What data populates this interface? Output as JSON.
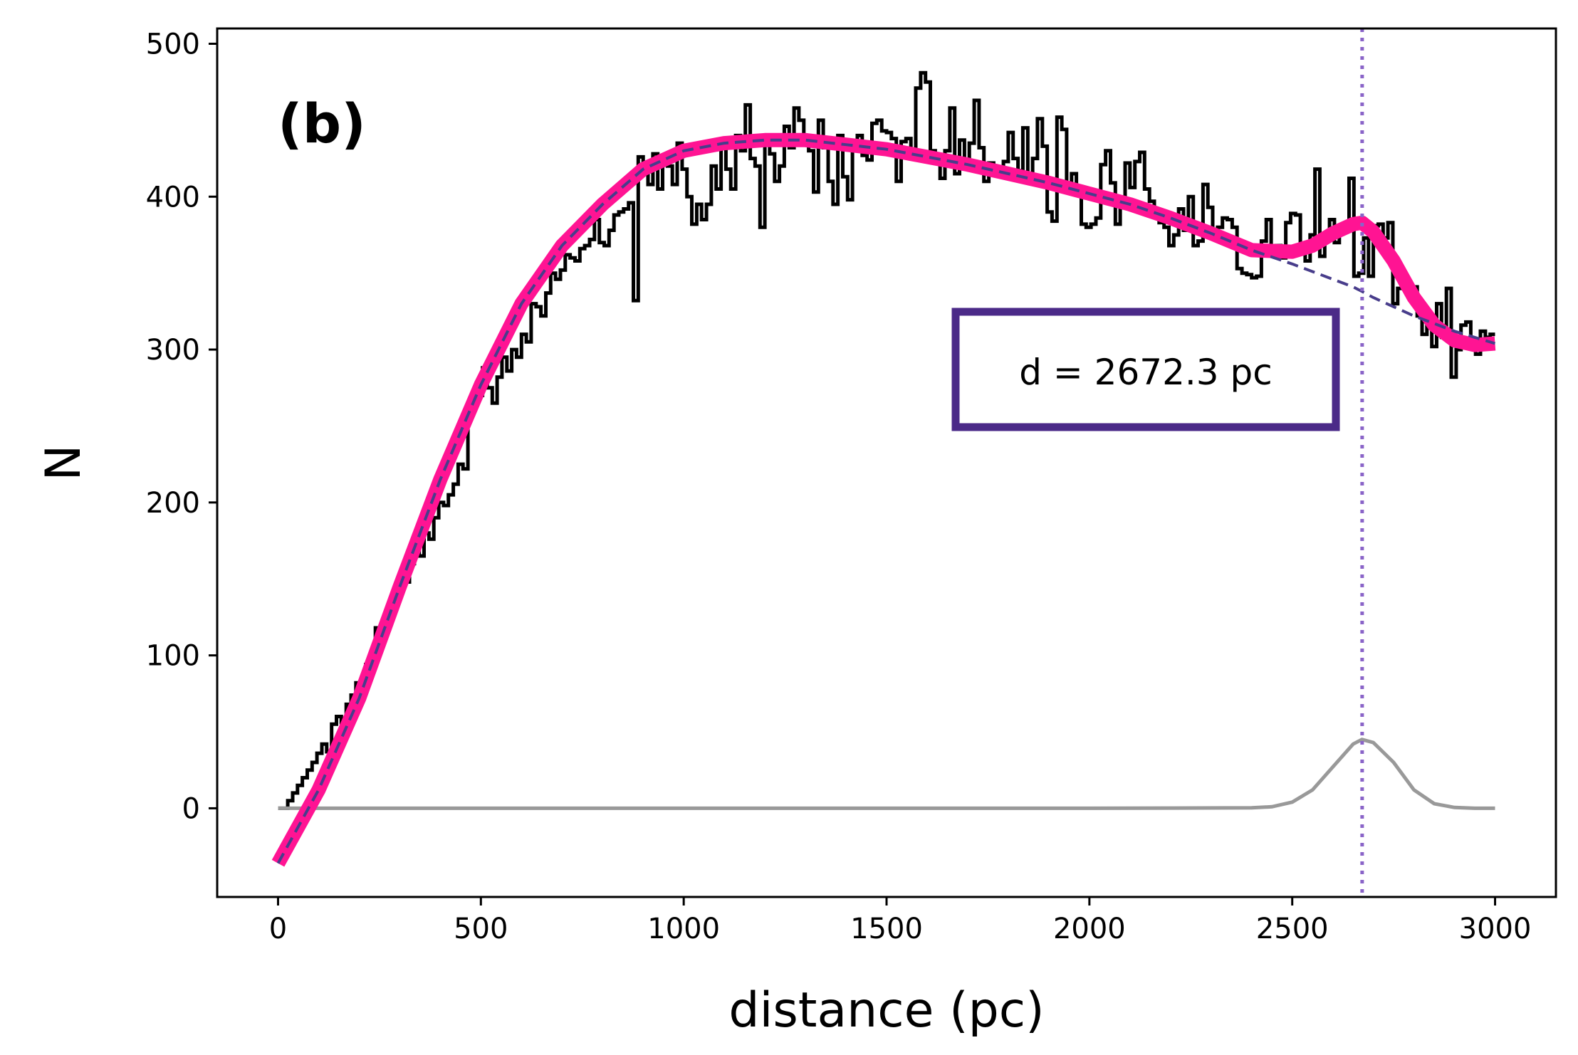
{
  "chart_data": {
    "type": "line",
    "panel_label": "(b)",
    "xlabel": "distance (pc)",
    "ylabel": "N",
    "xlim": [
      -150,
      3150
    ],
    "ylim": [
      -58,
      510
    ],
    "xticks": [
      0,
      500,
      1000,
      1500,
      2000,
      2500,
      3000
    ],
    "yticks": [
      0,
      100,
      200,
      300,
      400,
      500
    ],
    "annotation": "d = 2672.3 pc",
    "marker_distance": 2672.3,
    "colors": {
      "histogram": "#000000",
      "total_fit": "#ff1493",
      "background_fit": "#483d8b",
      "gaussian": "#999999",
      "marker_line": "#8a64c8",
      "annotation_border": "#4b2a88"
    },
    "series": [
      {
        "name": "",
        "kind": "histogram",
        "bin_width": 12,
        "x": [
          0,
          12,
          24,
          36,
          48,
          60,
          72,
          84,
          96,
          108,
          120,
          132,
          144,
          156,
          168,
          180,
          192,
          204,
          216,
          228,
          240,
          252,
          264,
          276,
          288,
          300,
          312,
          324,
          336,
          348,
          360,
          372,
          384,
          396,
          408,
          420,
          432,
          444,
          456,
          468,
          480,
          492,
          504,
          516,
          528,
          540,
          552,
          564,
          576,
          588,
          600,
          612,
          624,
          636,
          648,
          660,
          672,
          684,
          696,
          708,
          720,
          732,
          744,
          756,
          768,
          780,
          792,
          804,
          816,
          828,
          840,
          852,
          864,
          876,
          888,
          900,
          912,
          924,
          936,
          948,
          960,
          972,
          984,
          996,
          1008,
          1020,
          1032,
          1044,
          1056,
          1068,
          1080,
          1092,
          1104,
          1116,
          1128,
          1140,
          1152,
          1164,
          1176,
          1188,
          1200,
          1212,
          1224,
          1236,
          1248,
          1260,
          1272,
          1284,
          1296,
          1308,
          1320,
          1332,
          1344,
          1356,
          1368,
          1380,
          1392,
          1404,
          1416,
          1428,
          1440,
          1452,
          1464,
          1476,
          1488,
          1500,
          1512,
          1524,
          1536,
          1548,
          1560,
          1572,
          1584,
          1596,
          1608,
          1620,
          1632,
          1644,
          1656,
          1668,
          1680,
          1692,
          1704,
          1716,
          1728,
          1740,
          1752,
          1764,
          1776,
          1788,
          1800,
          1812,
          1824,
          1836,
          1848,
          1860,
          1872,
          1884,
          1896,
          1908,
          1920,
          1932,
          1944,
          1956,
          1968,
          1980,
          1992,
          2004,
          2016,
          2028,
          2040,
          2052,
          2064,
          2076,
          2088,
          2100,
          2112,
          2124,
          2136,
          2148,
          2160,
          2172,
          2184,
          2196,
          2208,
          2220,
          2232,
          2244,
          2256,
          2268,
          2280,
          2292,
          2304,
          2316,
          2328,
          2340,
          2352,
          2364,
          2376,
          2388,
          2400,
          2412,
          2424,
          2436,
          2448,
          2460,
          2472,
          2484,
          2496,
          2508,
          2520,
          2532,
          2544,
          2556,
          2568,
          2580,
          2592,
          2604,
          2616,
          2628,
          2640,
          2652,
          2664,
          2676,
          2688,
          2700,
          2712,
          2724,
          2736,
          2748,
          2760,
          2772,
          2784,
          2796,
          2808,
          2820,
          2832,
          2844,
          2856,
          2868,
          2880,
          2892,
          2904,
          2916,
          2928,
          2940,
          2952,
          2964,
          2976,
          2988
        ],
        "counts": [
          0,
          0,
          5,
          10,
          15,
          20,
          25,
          30,
          36,
          42,
          37,
          55,
          60,
          56,
          68,
          74,
          82,
          79,
          94,
          100,
          118,
          112,
          120,
          132,
          138,
          145,
          148,
          160,
          170,
          165,
          180,
          176,
          190,
          200,
          198,
          205,
          212,
          225,
          222,
          262,
          265,
          270,
          288,
          275,
          265,
          282,
          295,
          286,
          300,
          295,
          310,
          305,
          330,
          328,
          322,
          337,
          350,
          346,
          352,
          362,
          360,
          358,
          366,
          368,
          372,
          385,
          370,
          368,
          378,
          388,
          390,
          392,
          396,
          332,
          426,
          420,
          408,
          428,
          405,
          425,
          420,
          408,
          435,
          418,
          400,
          382,
          395,
          385,
          395,
          420,
          405,
          432,
          418,
          405,
          440,
          430,
          460,
          425,
          420,
          380,
          435,
          428,
          410,
          420,
          446,
          432,
          458,
          450,
          438,
          430,
          403,
          450,
          432,
          410,
          395,
          440,
          413,
          398,
          436,
          440,
          427,
          424,
          448,
          450,
          443,
          442,
          438,
          410,
          436,
          438,
          427,
          471,
          481,
          475,
          430,
          425,
          412,
          430,
          458,
          415,
          437,
          422,
          435,
          463,
          432,
          410,
          422,
          418,
          416,
          423,
          442,
          425,
          417,
          445,
          415,
          425,
          451,
          433,
          390,
          384,
          452,
          444,
          408,
          415,
          402,
          382,
          380,
          382,
          386,
          421,
          430,
          409,
          382,
          396,
          422,
          406,
          423,
          429,
          405,
          397,
          388,
          383,
          380,
          368,
          375,
          392,
          378,
          400,
          368,
          371,
          408,
          393,
          375,
          380,
          386,
          385,
          380,
          353,
          350,
          349,
          347,
          348,
          371,
          385,
          364,
          368,
          360,
          383,
          389,
          388,
          365,
          358,
          375,
          418,
          361,
          376,
          385,
          370,
          378,
          381,
          412,
          348,
          350,
          373,
          348,
          381,
          382,
          373,
          383,
          330,
          340,
          348,
          342,
          341,
          322,
          310,
          320,
          302,
          330,
          308,
          340,
          282,
          300,
          316,
          318,
          305,
          297,
          312,
          308,
          310
        ]
      },
      {
        "name": "",
        "kind": "total_fit",
        "x": [
          0,
          100,
          200,
          300,
          400,
          500,
          600,
          700,
          800,
          900,
          1000,
          1100,
          1200,
          1300,
          1400,
          1500,
          1600,
          1700,
          1800,
          1900,
          2000,
          2100,
          2200,
          2300,
          2400,
          2500,
          2550,
          2600,
          2650,
          2672,
          2700,
          2750,
          2800,
          2850,
          2900,
          2950,
          3000
        ],
        "y": [
          -36,
          12,
          72,
          145,
          215,
          277,
          330,
          368,
          395,
          418,
          430,
          435,
          437,
          437,
          434,
          431,
          426,
          421,
          415,
          409,
          402,
          395,
          386,
          376,
          365,
          364,
          368,
          376,
          382,
          383,
          377,
          358,
          334,
          316,
          306,
          303,
          304
        ]
      },
      {
        "name": "",
        "kind": "background_fit",
        "x": [
          0,
          100,
          200,
          300,
          400,
          500,
          600,
          700,
          800,
          900,
          1000,
          1100,
          1200,
          1300,
          1400,
          1500,
          1600,
          1700,
          1800,
          1900,
          2000,
          2100,
          2200,
          2300,
          2400,
          2500,
          2550,
          2600,
          2650,
          2672,
          2700,
          2750,
          2800,
          2850,
          2900,
          2950,
          3000
        ],
        "y": [
          -36,
          12,
          72,
          145,
          215,
          277,
          330,
          368,
          395,
          418,
          430,
          435,
          437,
          437,
          434,
          431,
          426,
          421,
          415,
          409,
          402,
          395,
          386,
          376,
          365,
          356,
          351,
          346,
          341,
          338,
          334,
          328,
          322,
          317,
          312,
          308,
          304
        ]
      },
      {
        "name": "",
        "kind": "gaussian",
        "x": [
          0,
          500,
          1000,
          1500,
          2000,
          2400,
          2450,
          2500,
          2550,
          2600,
          2650,
          2672,
          2700,
          2750,
          2800,
          2850,
          2900,
          2950,
          3000
        ],
        "y": [
          0,
          0,
          0,
          0,
          0,
          0.3,
          1,
          4,
          12,
          27,
          42,
          45,
          43,
          30,
          12,
          3,
          0.5,
          0,
          0
        ]
      }
    ]
  }
}
